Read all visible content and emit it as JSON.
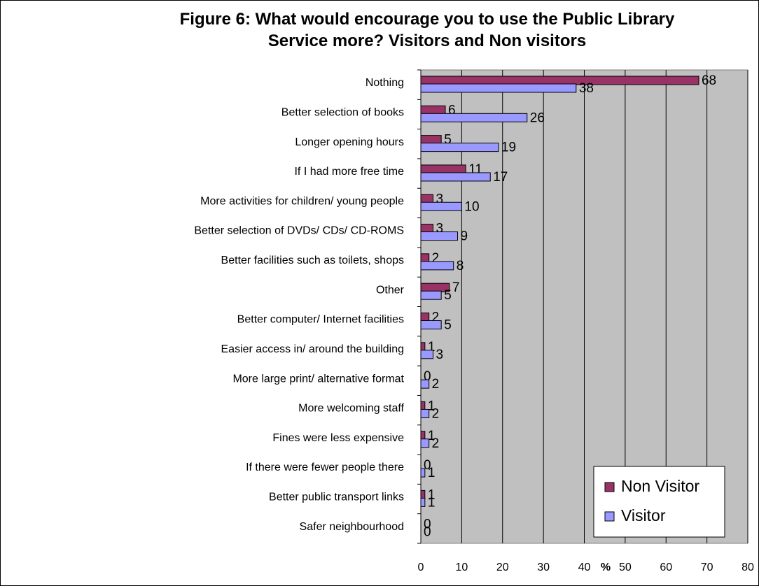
{
  "chart_data": {
    "type": "bar",
    "orientation": "horizontal",
    "title_line1": "Figure 6: What would encourage you to use the Public Library",
    "title_line2": "Service more? Visitors and Non visitors",
    "xlabel": "%",
    "ylabel": "",
    "xlim": [
      0,
      80
    ],
    "xticks": [
      0,
      10,
      20,
      30,
      40,
      50,
      60,
      70,
      80
    ],
    "grid": "vertical",
    "plot_background": "#c0c0c0",
    "legend_position": "bottom-right",
    "categories": [
      "Nothing",
      "Better selection of books",
      "Longer opening hours",
      "If I had more free time",
      "More activities for children/ young people",
      "Better selection of DVDs/ CDs/ CD-ROMS",
      "Better facilities such as toilets, shops",
      "Other",
      "Better computer/ Internet facilities",
      "Easier access in/ around the building",
      "More large print/ alternative format",
      "More welcoming staff",
      "Fines were less expensive",
      "If there were fewer people there",
      "Better public transport links",
      "Safer neighbourhood"
    ],
    "series": [
      {
        "name": "Non Visitor",
        "color": "#993366",
        "values": [
          68,
          6,
          5,
          11,
          3,
          3,
          2,
          7,
          2,
          1,
          0,
          1,
          1,
          0,
          1,
          0
        ]
      },
      {
        "name": "Visitor",
        "color": "#9999ff",
        "values": [
          38,
          26,
          19,
          17,
          10,
          9,
          8,
          5,
          5,
          3,
          2,
          2,
          2,
          1,
          1,
          0
        ]
      }
    ]
  }
}
